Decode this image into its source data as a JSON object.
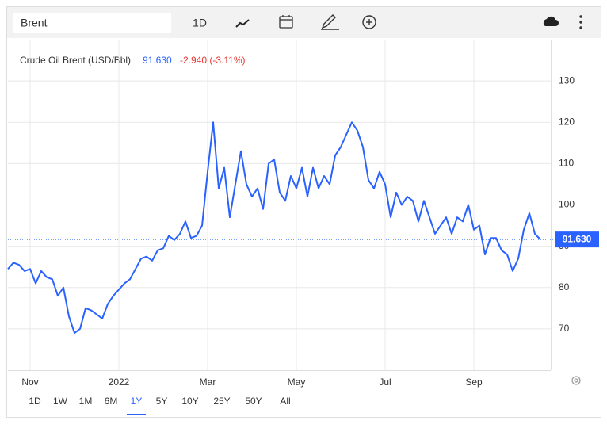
{
  "toolbar": {
    "search": "Brent",
    "interval": "1D"
  },
  "ranges": {
    "items": [
      "1D",
      "1W",
      "1M",
      "6M",
      "1Y",
      "5Y",
      "10Y",
      "25Y",
      "50Y",
      "All"
    ],
    "selected": "1Y"
  },
  "chart_data": {
    "type": "line",
    "title": "Crude Oil Brent (USD/Bbl)",
    "price_label": "91.630",
    "change_label": "-2.940 (-3.11%)",
    "categories": [
      null,
      null,
      null,
      null,
      "Nov",
      null,
      null,
      null,
      null,
      null,
      null,
      null,
      null,
      null,
      null,
      null,
      null,
      null,
      null,
      null,
      "2022",
      null,
      null,
      null,
      null,
      null,
      null,
      null,
      null,
      null,
      null,
      null,
      null,
      null,
      null,
      null,
      "Mar",
      null,
      null,
      null,
      null,
      null,
      null,
      null,
      null,
      null,
      null,
      null,
      null,
      null,
      null,
      null,
      "May",
      null,
      null,
      null,
      null,
      null,
      null,
      null,
      null,
      null,
      null,
      null,
      null,
      null,
      null,
      null,
      "Jul",
      null,
      null,
      null,
      null,
      null,
      null,
      null,
      null,
      null,
      null,
      null,
      null,
      null,
      null,
      null,
      "Sep",
      null,
      null,
      null,
      null,
      null,
      null,
      null,
      null,
      null,
      null,
      null,
      null
    ],
    "series": [
      {
        "name": "Crude Oil Brent (USD/Bbl)",
        "color": "#2962ff",
        "values": [
          84.5,
          86,
          85.5,
          84,
          84.5,
          81,
          84,
          82.5,
          82,
          78,
          80,
          73,
          69,
          70,
          75,
          74.5,
          73.5,
          72.5,
          76,
          78,
          79.5,
          81,
          82,
          84.5,
          87,
          87.5,
          86.5,
          89,
          89.5,
          92.5,
          91.5,
          93,
          96,
          92,
          92.5,
          95,
          108,
          120,
          104,
          109,
          97,
          105,
          113,
          105,
          102,
          104,
          99,
          110,
          111,
          103,
          101,
          107,
          104,
          109,
          102,
          109,
          104,
          107,
          105,
          112,
          114,
          117,
          120,
          118,
          114,
          106,
          104,
          108,
          105,
          97,
          103,
          100,
          102,
          101,
          96,
          101,
          97,
          93,
          95,
          97,
          93,
          97,
          96,
          100,
          94,
          95,
          88,
          92,
          92,
          89,
          88,
          84,
          87,
          94,
          98,
          93,
          91.63
        ]
      }
    ],
    "ylim": [
      60,
      140
    ],
    "yticks": [
      70,
      80,
      90,
      100,
      110,
      120,
      130
    ],
    "grid": true
  }
}
